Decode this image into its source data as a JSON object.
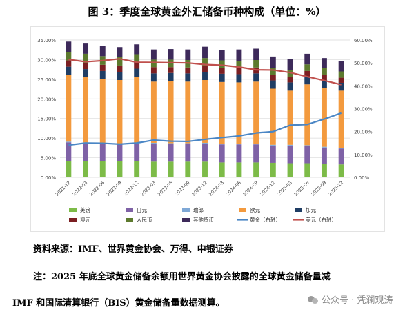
{
  "title": "图 3：季度全球黄金外汇储备币种构成（单位：%）",
  "source": "资料来源：IMF、世界黄金协会、万得、中银证券",
  "note_line1": "注：2025 年底全球黄金储备余额用世界黄金协会披露的全球黄金储备量减",
  "note_line2": "IMF 和国际清算银行（BIS）黄金储备量数据测算。",
  "watermark": "公众号 · 凭澜观涛",
  "chart_data": {
    "type": "bar",
    "stacked": true,
    "categories": [
      "2021-12",
      "2022-03",
      "2022-06",
      "2022-09",
      "2022-12",
      "2023-03",
      "2023-06",
      "2023-09",
      "2023-12",
      "2024-03",
      "2024-06",
      "2024-09",
      "2024-12",
      "2025-03",
      "2025-06",
      "2025-09",
      "2025-12"
    ],
    "left_axis": {
      "min": 0,
      "max": 35,
      "ticks": [
        0,
        5,
        10,
        15,
        20,
        25,
        30,
        35
      ],
      "format": "0.00%"
    },
    "right_axis": {
      "min": 0,
      "max": 60,
      "ticks": [
        0,
        10,
        20,
        30,
        40,
        50,
        60
      ],
      "format": "0.00%"
    },
    "series": [
      {
        "name": "英镑",
        "color": "#7dbb48",
        "axis": "left",
        "kind": "bar",
        "values": [
          4.1,
          4.1,
          4.1,
          4.1,
          4.2,
          4.0,
          4.0,
          4.0,
          4.0,
          3.8,
          3.8,
          3.8,
          3.7,
          3.6,
          3.6,
          3.4,
          3.3
        ]
      },
      {
        "name": "日元",
        "color": "#7f62a6",
        "axis": "left",
        "kind": "bar",
        "values": [
          4.8,
          4.6,
          4.4,
          4.3,
          4.3,
          4.6,
          4.5,
          4.5,
          4.6,
          4.6,
          4.6,
          4.6,
          4.4,
          4.5,
          4.4,
          4.2,
          4.0
        ]
      },
      {
        "name": "瑞郎",
        "color": "#7fa8d6",
        "axis": "left",
        "kind": "bar",
        "values": [
          0.2,
          0.2,
          0.2,
          0.2,
          0.2,
          0.2,
          0.2,
          0.2,
          0.2,
          0.2,
          0.2,
          0.2,
          0.2,
          0.2,
          0.2,
          0.2,
          0.2
        ]
      },
      {
        "name": "欧元",
        "color": "#f39a3e",
        "axis": "left",
        "kind": "bar",
        "values": [
          17.0,
          16.6,
          16.3,
          16.2,
          16.9,
          15.6,
          15.8,
          15.7,
          16.0,
          15.7,
          15.6,
          15.8,
          14.3,
          13.8,
          15.5,
          15.0,
          14.6
        ]
      },
      {
        "name": "加元",
        "color": "#1f3d64",
        "axis": "left",
        "kind": "bar",
        "values": [
          2.1,
          2.1,
          2.1,
          2.1,
          2.1,
          2.1,
          2.1,
          2.1,
          2.1,
          2.1,
          2.1,
          2.1,
          2.1,
          2.1,
          2.0,
          2.0,
          2.0
        ]
      },
      {
        "name": "澳元",
        "color": "#7b1f22",
        "axis": "left",
        "kind": "bar",
        "values": [
          1.6,
          1.6,
          1.6,
          1.6,
          1.6,
          1.6,
          1.5,
          1.5,
          1.5,
          1.5,
          1.5,
          1.5,
          1.4,
          1.4,
          1.4,
          1.4,
          1.3
        ]
      },
      {
        "name": "人民币",
        "color": "#5d7a2e",
        "axis": "left",
        "kind": "bar",
        "values": [
          2.2,
          2.3,
          2.2,
          2.1,
          2.1,
          1.9,
          1.9,
          1.9,
          2.0,
          1.9,
          1.9,
          1.9,
          1.8,
          1.7,
          1.7,
          1.6,
          1.6
        ]
      },
      {
        "name": "其他货币",
        "color": "#3d2a5a",
        "axis": "left",
        "kind": "bar",
        "values": [
          2.6,
          2.6,
          2.6,
          2.6,
          2.5,
          2.6,
          2.7,
          2.7,
          2.9,
          2.7,
          2.9,
          2.9,
          2.9,
          2.8,
          2.7,
          2.6,
          2.6
        ]
      },
      {
        "name": "黄金（右轴）",
        "color": "#4a86c5",
        "axis": "right",
        "kind": "line",
        "values": [
          14.1,
          15.0,
          14.9,
          14.5,
          15.0,
          16.3,
          15.8,
          15.7,
          16.6,
          17.4,
          18.1,
          19.4,
          20.0,
          22.8,
          23.1,
          25.5,
          28.1
        ]
      },
      {
        "name": "美元（右轴）",
        "color": "#c0504d",
        "axis": "right",
        "kind": "line",
        "values": [
          51.5,
          50.5,
          51.0,
          51.8,
          50.3,
          50.2,
          50.1,
          50.0,
          49.3,
          49.0,
          48.2,
          47.0,
          46.9,
          45.8,
          44.0,
          42.3,
          40.5
        ]
      }
    ]
  }
}
